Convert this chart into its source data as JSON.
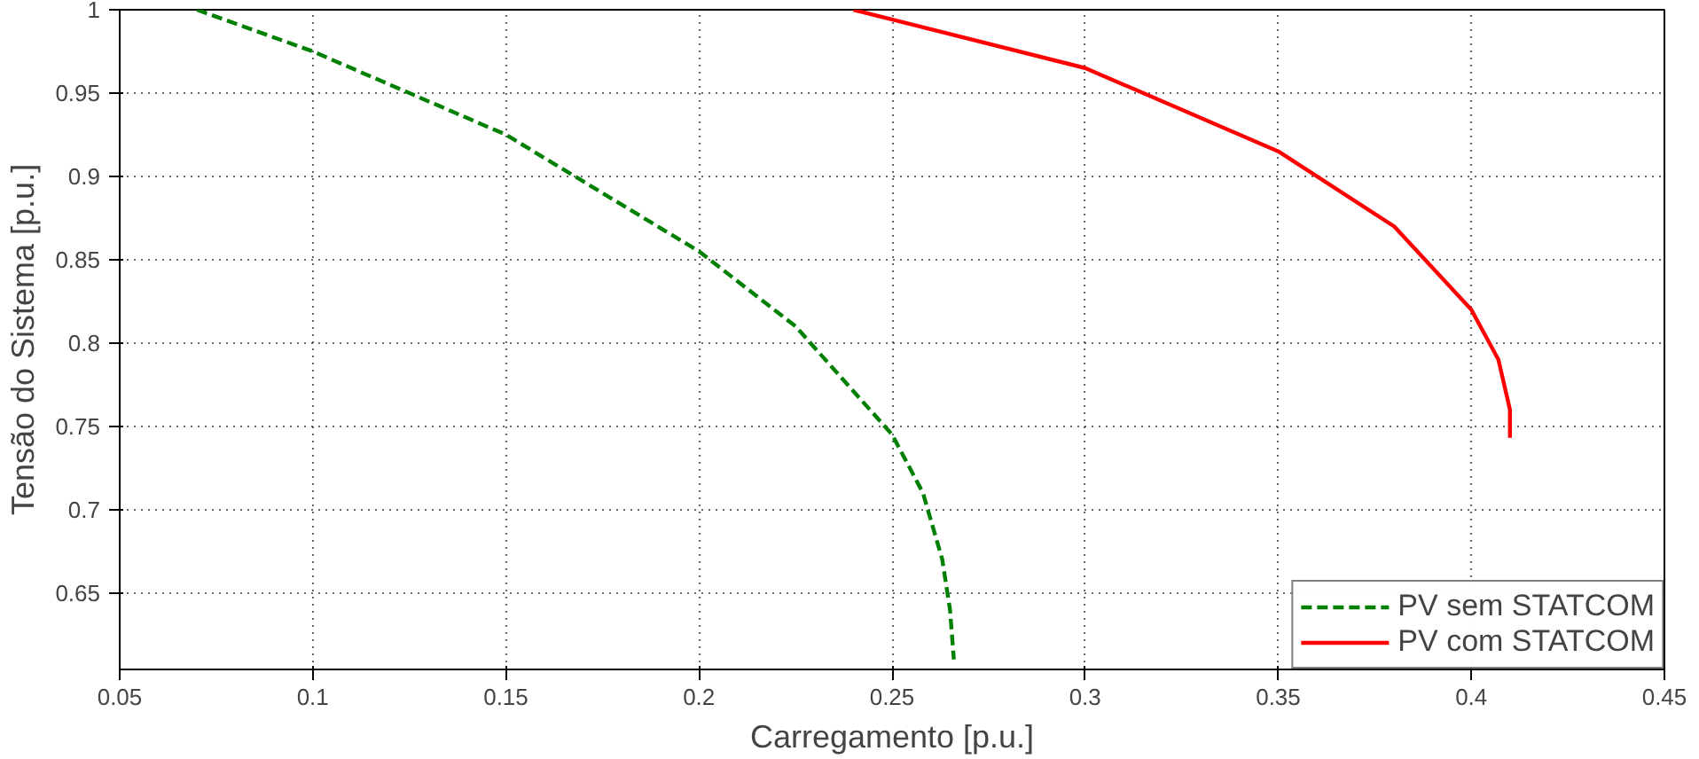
{
  "chart_data": {
    "type": "line",
    "xlabel": "Carregamento [p.u.]",
    "ylabel": "Tensão do Sistema [p.u.]",
    "xlim": [
      0.05,
      0.45
    ],
    "xticks": [
      0.05,
      0.1,
      0.15,
      0.2,
      0.25,
      0.3,
      0.35,
      0.4,
      0.45
    ],
    "ylim": [
      0.604,
      1
    ],
    "yticks": [
      0.65,
      0.7,
      0.75,
      0.8,
      0.85,
      0.9,
      0.95,
      1
    ],
    "grid": true,
    "legend": "bottom right",
    "series": [
      {
        "name": "PV sem STATCOM",
        "color": "#008000",
        "line_style": "dashed",
        "x": [
          0.07,
          0.1,
          0.15,
          0.2,
          0.225,
          0.25,
          0.258,
          0.263,
          0.265,
          0.266
        ],
        "values": [
          1.0,
          0.975,
          0.925,
          0.855,
          0.81,
          0.745,
          0.71,
          0.67,
          0.64,
          0.61
        ]
      },
      {
        "name": "PV com STATCOM",
        "color": "#ff0000",
        "line_style": "solid",
        "x": [
          0.24,
          0.3,
          0.35,
          0.38,
          0.4,
          0.407,
          0.41,
          0.41
        ],
        "values": [
          1.0,
          0.965,
          0.915,
          0.87,
          0.82,
          0.79,
          0.76,
          0.743
        ]
      }
    ]
  }
}
